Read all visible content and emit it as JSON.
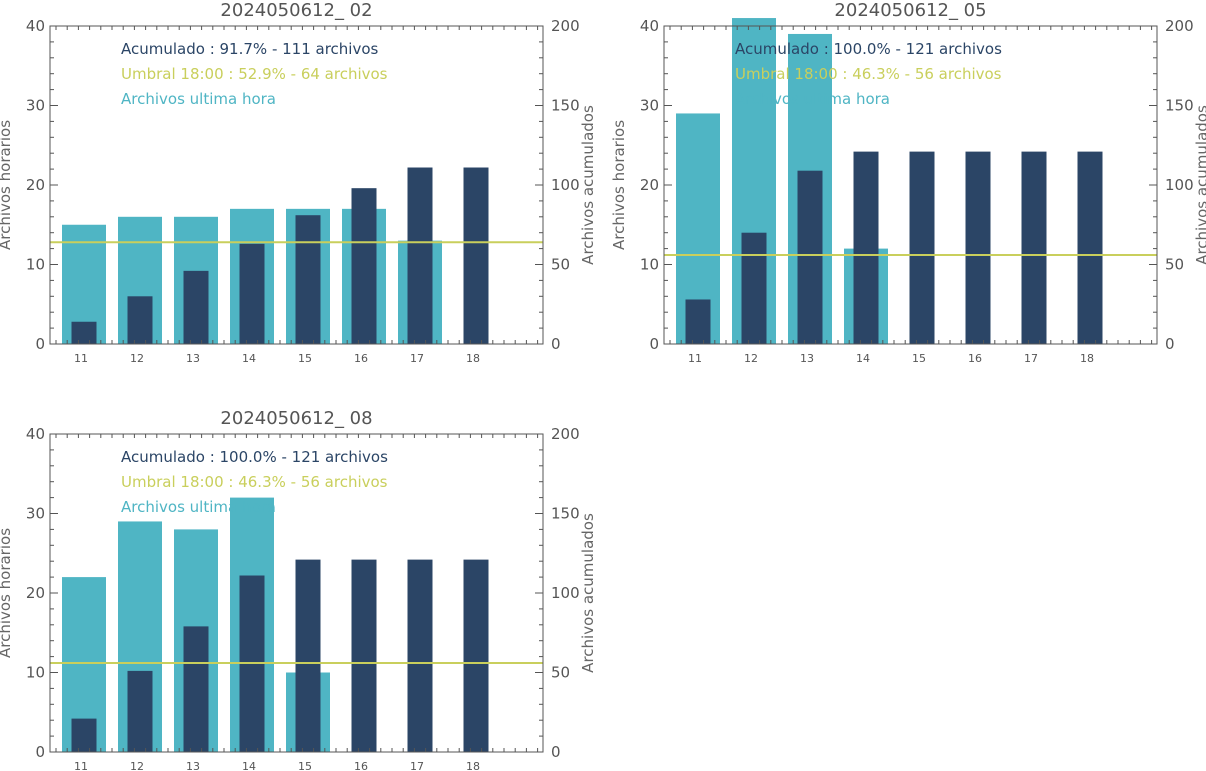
{
  "colors": {
    "hourly": "#4fb5c4",
    "cumulative": "#2b4566",
    "threshold": "#c9cf5c",
    "axis": "#555555"
  },
  "chart_data": [
    {
      "type": "bar",
      "title": "2024050612_ 02",
      "categories": [
        "11",
        "12",
        "13",
        "14",
        "15",
        "16",
        "17",
        "18"
      ],
      "ylabel": "Archivos horarios",
      "y2label": "Archivos acumulados",
      "ylim": [
        0,
        40
      ],
      "y2lim": [
        0,
        200
      ],
      "yticks": [
        "0",
        "10",
        "20",
        "30",
        "40"
      ],
      "y2ticks": [
        "0",
        "50",
        "100",
        "150",
        "200"
      ],
      "series": [
        {
          "name": "Archivos ultima hora",
          "axis": "left",
          "values": [
            15,
            16,
            16,
            17,
            17,
            17,
            13,
            0
          ]
        },
        {
          "name": "Acumulado",
          "axis": "right",
          "values": [
            14,
            30,
            46,
            63,
            81,
            98,
            111,
            111
          ]
        }
      ],
      "threshold_right": 64,
      "legend": [
        {
          "key": "cumulative",
          "text": "Acumulado : 91.7% - 111 archivos"
        },
        {
          "key": "threshold",
          "text": "Umbral 18:00 : 52.9% - 64 archivos"
        },
        {
          "key": "hourly",
          "text": "Archivos ultima hora"
        }
      ]
    },
    {
      "type": "bar",
      "title": "2024050612_ 05",
      "categories": [
        "11",
        "12",
        "13",
        "14",
        "15",
        "16",
        "17",
        "18"
      ],
      "ylabel": "Archivos horarios",
      "y2label": "Archivos acumulados",
      "ylim": [
        0,
        40
      ],
      "y2lim": [
        0,
        200
      ],
      "yticks": [
        "0",
        "10",
        "20",
        "30",
        "40"
      ],
      "y2ticks": [
        "0",
        "50",
        "100",
        "150",
        "200"
      ],
      "series": [
        {
          "name": "Archivos ultima hora",
          "axis": "left",
          "values": [
            29,
            41,
            39,
            12,
            0,
            0,
            0,
            0
          ]
        },
        {
          "name": "Acumulado",
          "axis": "right",
          "values": [
            28,
            70,
            109,
            121,
            121,
            121,
            121,
            121
          ]
        }
      ],
      "threshold_right": 56,
      "legend": [
        {
          "key": "cumulative",
          "text": "Acumulado : 100.0% - 121 archivos"
        },
        {
          "key": "threshold",
          "text": "Umbral 18:00 : 46.3% - 56 archivos"
        },
        {
          "key": "hourly",
          "text": "Archivos ultima hora"
        }
      ]
    },
    {
      "type": "bar",
      "title": "2024050612_ 08",
      "categories": [
        "11",
        "12",
        "13",
        "14",
        "15",
        "16",
        "17",
        "18"
      ],
      "ylabel": "Archivos horarios",
      "y2label": "Archivos acumulados",
      "ylim": [
        0,
        40
      ],
      "y2lim": [
        0,
        200
      ],
      "yticks": [
        "0",
        "10",
        "20",
        "30",
        "40"
      ],
      "y2ticks": [
        "0",
        "50",
        "100",
        "150",
        "200"
      ],
      "series": [
        {
          "name": "Archivos ultima hora",
          "axis": "left",
          "values": [
            22,
            29,
            28,
            32,
            10,
            0,
            0,
            0
          ]
        },
        {
          "name": "Acumulado",
          "axis": "right",
          "values": [
            21,
            51,
            79,
            111,
            121,
            121,
            121,
            121
          ]
        }
      ],
      "threshold_right": 56,
      "legend": [
        {
          "key": "cumulative",
          "text": "Acumulado : 100.0% - 121 archivos"
        },
        {
          "key": "threshold",
          "text": "Umbral 18:00 : 46.3% - 56 archivos"
        },
        {
          "key": "hourly",
          "text": "Archivos ultima hora"
        }
      ]
    }
  ]
}
